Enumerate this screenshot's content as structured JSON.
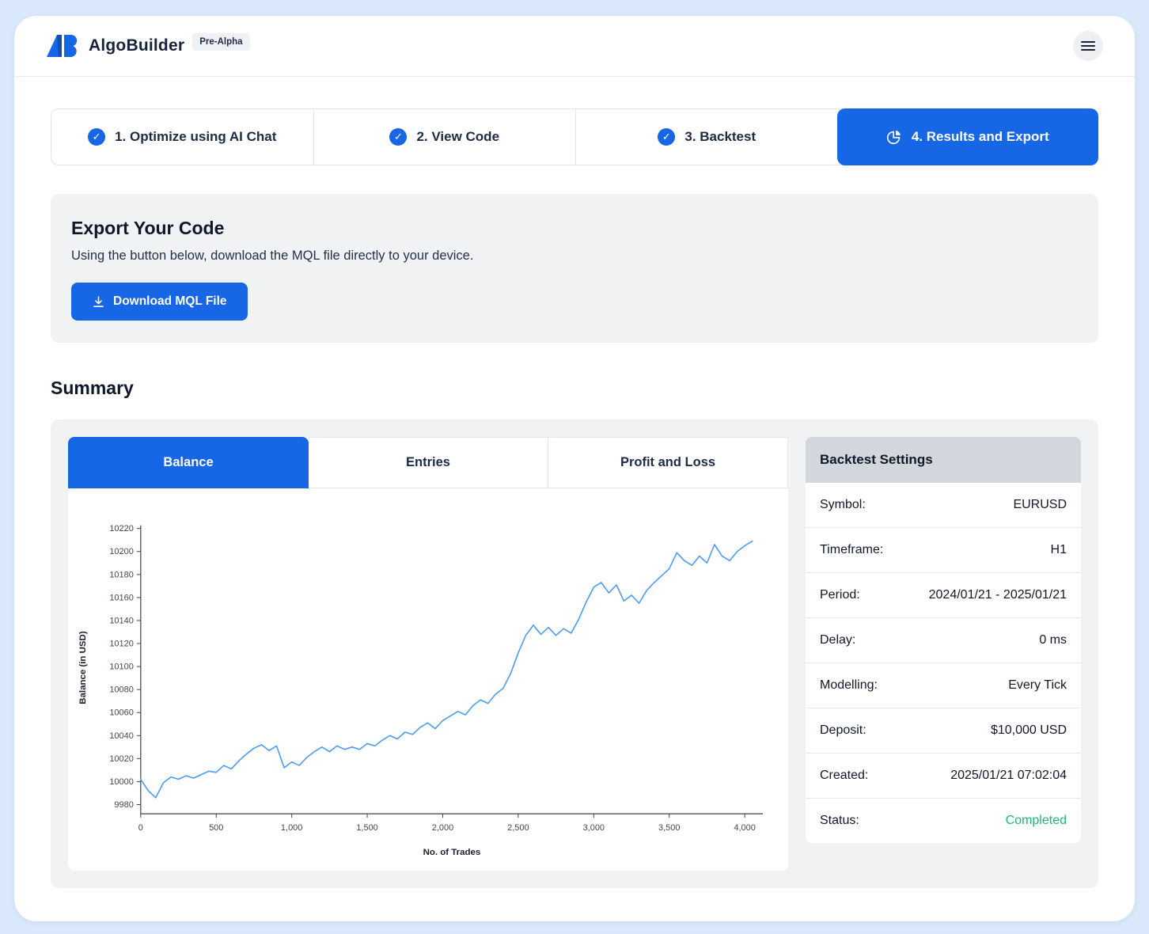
{
  "colors": {
    "primary": "#1766e5",
    "line": "#4d9bf2",
    "status_green": "#22b573"
  },
  "icons": {
    "check": "✓"
  },
  "header": {
    "logo_text": "AB",
    "app_name": "AlgoBuilder",
    "badge": "Pre-Alpha"
  },
  "steps": [
    {
      "label": "1. Optimize using AI Chat",
      "state": "completed"
    },
    {
      "label": "2. View Code",
      "state": "completed"
    },
    {
      "label": "3. Backtest",
      "state": "completed"
    },
    {
      "label": "4. Results and Export",
      "state": "active"
    }
  ],
  "export": {
    "title": "Export Your Code",
    "description": "Using the button below, download the MQL file directly to your device.",
    "button_label": "Download MQL File"
  },
  "summary": {
    "title": "Summary",
    "tabs": [
      {
        "label": "Balance",
        "active": true
      },
      {
        "label": "Entries",
        "active": false
      },
      {
        "label": "Profit and Loss",
        "active": false
      }
    ]
  },
  "backtest_settings": {
    "title": "Backtest Settings",
    "rows": [
      {
        "label": "Symbol:",
        "value": "EURUSD"
      },
      {
        "label": "Timeframe:",
        "value": "H1"
      },
      {
        "label": "Period:",
        "value": "2024/01/21 - 2025/01/21"
      },
      {
        "label": "Delay:",
        "value": "0 ms"
      },
      {
        "label": "Modelling:",
        "value": "Every Tick"
      },
      {
        "label": "Deposit:",
        "value": "$10,000 USD"
      },
      {
        "label": "Created:",
        "value": "2025/01/21 07:02:04"
      },
      {
        "label": "Status:",
        "value": "Completed"
      }
    ]
  },
  "chart_data": {
    "type": "line",
    "title": "",
    "xlabel": "No. of Trades",
    "ylabel": "Balance (in USD)",
    "xlim": [
      0,
      4120
    ],
    "ylim": [
      9972,
      10226
    ],
    "x_ticks": [
      0,
      500,
      1000,
      1500,
      2000,
      2500,
      3000,
      3500,
      4000
    ],
    "y_ticks": [
      9980,
      10000,
      10020,
      10040,
      10060,
      10080,
      10100,
      10120,
      10140,
      10160,
      10180,
      10200,
      10220
    ],
    "grid": false,
    "legend": false,
    "series": [
      {
        "name": "Balance",
        "color": "#4d9bf2",
        "x": [
          0,
          50,
          100,
          150,
          200,
          250,
          300,
          350,
          400,
          450,
          500,
          550,
          600,
          650,
          700,
          750,
          800,
          850,
          900,
          950,
          1000,
          1050,
          1100,
          1150,
          1200,
          1250,
          1300,
          1350,
          1400,
          1450,
          1500,
          1550,
          1600,
          1650,
          1700,
          1750,
          1800,
          1850,
          1900,
          1950,
          2000,
          2050,
          2100,
          2150,
          2200,
          2250,
          2300,
          2350,
          2400,
          2450,
          2500,
          2550,
          2600,
          2650,
          2700,
          2750,
          2800,
          2850,
          2900,
          2950,
          3000,
          3050,
          3100,
          3150,
          3200,
          3250,
          3300,
          3350,
          3400,
          3450,
          3500,
          3550,
          3600,
          3650,
          3700,
          3750,
          3800,
          3850,
          3900,
          3950,
          4000,
          4050
        ],
        "y": [
          10002,
          9992,
          9986,
          9999,
          10004,
          10002,
          10005,
          10003,
          10006,
          10009,
          10008,
          10014,
          10011,
          10018,
          10024,
          10029,
          10032,
          10027,
          10031,
          10012,
          10017,
          10014,
          10021,
          10026,
          10030,
          10026,
          10031,
          10028,
          10030,
          10028,
          10033,
          10031,
          10036,
          10040,
          10037,
          10043,
          10041,
          10047,
          10051,
          10046,
          10053,
          10057,
          10061,
          10058,
          10066,
          10071,
          10068,
          10076,
          10081,
          10094,
          10112,
          10127,
          10136,
          10128,
          10134,
          10127,
          10133,
          10129,
          10141,
          10156,
          10169,
          10173,
          10164,
          10171,
          10157,
          10162,
          10155,
          10166,
          10173,
          10179,
          10185,
          10199,
          10192,
          10188,
          10196,
          10190,
          10206,
          10196,
          10192,
          10200,
          10205,
          10209
        ]
      }
    ]
  }
}
